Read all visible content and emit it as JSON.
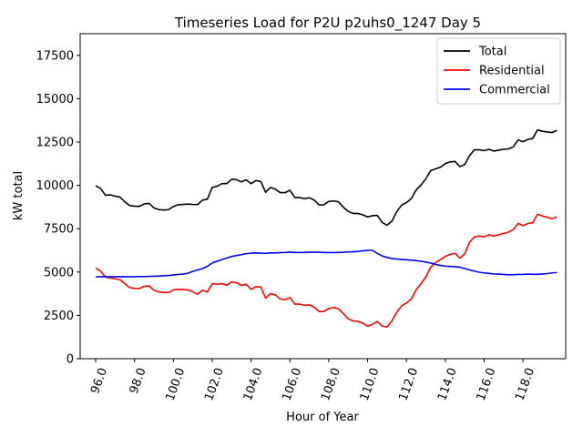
{
  "chart_data": {
    "type": "line",
    "title": "Timeseries Load for P2U p2uhs0_1247  Day 5",
    "xlabel": "Hour of Year",
    "ylabel": "kW total",
    "xlim": [
      95.2,
      120.2
    ],
    "ylim": [
      0,
      18750
    ],
    "xticks": [
      96,
      98,
      100,
      102,
      104,
      106,
      108,
      110,
      112,
      114,
      116,
      118
    ],
    "xtick_labels": [
      "96.0",
      "98.0",
      "100.0",
      "102.0",
      "104.0",
      "106.0",
      "108.0",
      "110.0",
      "112.0",
      "114.0",
      "116.0",
      "118.0"
    ],
    "yticks": [
      0,
      2500,
      5000,
      7500,
      10000,
      12500,
      15000,
      17500
    ],
    "ytick_labels": [
      "0",
      "2500",
      "5000",
      "7500",
      "10000",
      "12500",
      "15000",
      "17500"
    ],
    "legend_position": "top-right",
    "x": [
      96.0,
      96.25,
      96.5,
      96.75,
      97.0,
      97.25,
      97.5,
      97.75,
      98.0,
      98.25,
      98.5,
      98.75,
      99.0,
      99.25,
      99.5,
      99.75,
      100.0,
      100.25,
      100.5,
      100.75,
      101.0,
      101.25,
      101.5,
      101.75,
      102.0,
      102.25,
      102.5,
      102.75,
      103.0,
      103.25,
      103.5,
      103.75,
      104.0,
      104.25,
      104.5,
      104.75,
      105.0,
      105.25,
      105.5,
      105.75,
      106.0,
      106.25,
      106.5,
      106.75,
      107.0,
      107.25,
      107.5,
      107.75,
      108.0,
      108.25,
      108.5,
      108.75,
      109.0,
      109.25,
      109.5,
      109.75,
      110.0,
      110.25,
      110.5,
      110.75,
      111.0,
      111.25,
      111.5,
      111.75,
      112.0,
      112.25,
      112.5,
      112.75,
      113.0,
      113.25,
      113.5,
      113.75,
      114.0,
      114.25,
      114.5,
      114.75,
      115.0,
      115.25,
      115.5,
      115.75,
      116.0,
      116.25,
      116.5,
      116.75,
      117.0,
      117.25,
      117.5,
      117.75,
      118.0,
      118.25,
      118.5,
      118.75,
      119.0,
      119.25,
      119.5,
      119.75
    ],
    "series": [
      {
        "name": "Total",
        "color": "#000000",
        "values": [
          9980,
          9820,
          9430,
          9450,
          9380,
          9320,
          9050,
          8830,
          8800,
          8790,
          8930,
          8960,
          8700,
          8600,
          8580,
          8600,
          8780,
          8880,
          8900,
          8920,
          8900,
          8890,
          9150,
          9200,
          9880,
          9950,
          10100,
          10100,
          10350,
          10330,
          10200,
          10320,
          10100,
          10280,
          10220,
          9600,
          9880,
          9780,
          9580,
          9580,
          9720,
          9300,
          9300,
          9230,
          9280,
          9150,
          8870,
          8880,
          9070,
          9100,
          9050,
          8740,
          8500,
          8380,
          8380,
          8300,
          8180,
          8250,
          8270,
          7860,
          7700,
          7930,
          8480,
          8860,
          9010,
          9230,
          9730,
          10020,
          10380,
          10850,
          10950,
          11050,
          11250,
          11350,
          11380,
          11080,
          11200,
          11720,
          12050,
          12050,
          12000,
          12080,
          11980,
          12030,
          12080,
          12100,
          12220,
          12620,
          12520,
          12650,
          12700,
          13200,
          13120,
          13080,
          13050,
          13170
        ]
      },
      {
        "name": "Residential",
        "color": "#ff0000",
        "values": [
          5230,
          5050,
          4720,
          4650,
          4620,
          4550,
          4330,
          4100,
          4060,
          4050,
          4180,
          4200,
          3950,
          3850,
          3820,
          3820,
          3970,
          4000,
          3990,
          3970,
          3850,
          3720,
          3950,
          3850,
          4330,
          4300,
          4330,
          4240,
          4420,
          4380,
          4230,
          4290,
          4000,
          4150,
          4130,
          3500,
          3760,
          3680,
          3450,
          3400,
          3530,
          3150,
          3150,
          3080,
          3100,
          2980,
          2720,
          2720,
          2900,
          2950,
          2880,
          2600,
          2300,
          2180,
          2150,
          2050,
          1880,
          1980,
          2150,
          1880,
          1830,
          2180,
          2680,
          3050,
          3210,
          3450,
          3980,
          4320,
          4720,
          5280,
          5550,
          5720,
          5900,
          6020,
          6080,
          5800,
          6050,
          6720,
          7020,
          7080,
          7030,
          7150,
          7080,
          7150,
          7220,
          7300,
          7450,
          7800,
          7680,
          7800,
          7850,
          8330,
          8230,
          8150,
          8080,
          8180
        ]
      },
      {
        "name": "Commercial",
        "color": "#0000ff",
        "values": [
          4720,
          4730,
          4730,
          4730,
          4730,
          4730,
          4730,
          4730,
          4730,
          4740,
          4740,
          4750,
          4760,
          4770,
          4790,
          4800,
          4830,
          4860,
          4880,
          4930,
          5040,
          5120,
          5200,
          5330,
          5520,
          5620,
          5720,
          5810,
          5900,
          5950,
          6000,
          6060,
          6090,
          6100,
          6090,
          6080,
          6100,
          6100,
          6120,
          6130,
          6150,
          6130,
          6130,
          6130,
          6140,
          6140,
          6140,
          6130,
          6120,
          6120,
          6130,
          6140,
          6160,
          6170,
          6190,
          6220,
          6250,
          6250,
          6070,
          5930,
          5840,
          5780,
          5750,
          5730,
          5710,
          5680,
          5660,
          5620,
          5570,
          5520,
          5440,
          5380,
          5340,
          5320,
          5310,
          5280,
          5200,
          5120,
          5050,
          4990,
          4950,
          4920,
          4890,
          4880,
          4860,
          4840,
          4850,
          4860,
          4860,
          4880,
          4870,
          4870,
          4890,
          4910,
          4950,
          4970
        ]
      }
    ]
  }
}
